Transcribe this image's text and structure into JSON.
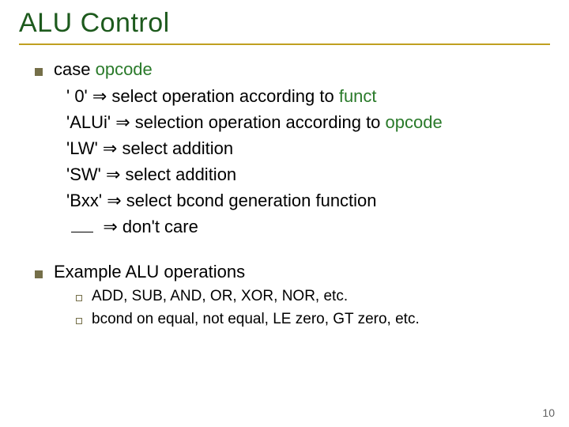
{
  "title": "ALU Control",
  "colors": {
    "title": "#1d5a1d",
    "rule": "#c0a020",
    "bullet": "#756f49",
    "accent": "#2a7a2a",
    "page_num": "#626262"
  },
  "title_fontsize": 34,
  "body_fontsize": 22,
  "sub_fontsize": 19,
  "sections": [
    {
      "lead_plain": "case ",
      "lead_accent": "opcode",
      "cases": [
        {
          "key": "' 0'",
          "arrow": "⇒",
          "text_pre": " select operation according to ",
          "text_accent": "funct",
          "text_post": ""
        },
        {
          "key": "'ALUi'",
          "arrow": "⇒",
          "text_pre": " selection operation according to ",
          "text_accent": "opcode",
          "text_post": ""
        },
        {
          "key": "'LW'",
          "arrow": "⇒",
          "text_pre": " select addition",
          "text_accent": "",
          "text_post": ""
        },
        {
          "key": "'SW'",
          "arrow": "⇒",
          "text_pre": " select addition",
          "text_accent": "",
          "text_post": ""
        },
        {
          "key": "'Bxx'",
          "arrow": "⇒",
          "text_pre": " select bcond generation function",
          "text_accent": "",
          "text_post": ""
        },
        {
          "key": "__BLANK__",
          "arrow": "⇒",
          "text_pre": " don't care",
          "text_accent": "",
          "text_post": ""
        }
      ]
    },
    {
      "lead_plain": "Example ALU operations",
      "lead_accent": "",
      "subs": [
        "ADD, SUB, AND, OR, XOR, NOR, etc.",
        "bcond on equal, not equal, LE zero, GT zero, etc."
      ]
    }
  ],
  "page_number": "10"
}
